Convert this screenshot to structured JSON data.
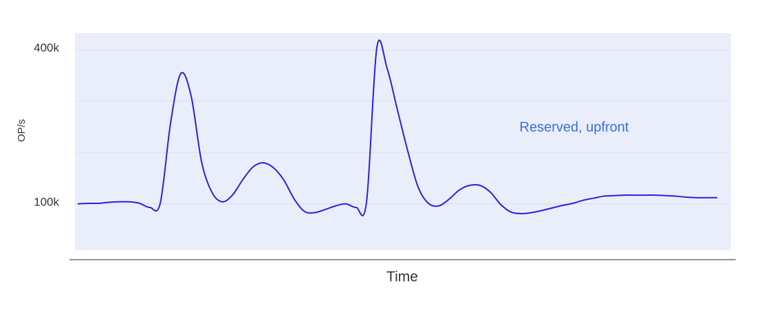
{
  "chart_data": {
    "type": "line",
    "ylabel": "OP/s",
    "xlabel": "Time",
    "annotation": "Reserved, upfront",
    "annotation_color": "#3a6fd8",
    "background": "#eaeefa",
    "grid": true,
    "categories": [
      null,
      null,
      null,
      null,
      null,
      null,
      null,
      null,
      null,
      null,
      null,
      null,
      null,
      null,
      null,
      null,
      null,
      null,
      null,
      null,
      null,
      null,
      null,
      null,
      null,
      null,
      null,
      null,
      null,
      null,
      null,
      null,
      null,
      null,
      null,
      null,
      null,
      null,
      null,
      null,
      null,
      null,
      null,
      null,
      null,
      null,
      null,
      null,
      null,
      null,
      null,
      null,
      null,
      null,
      null,
      null,
      null,
      null,
      null,
      null,
      null,
      null,
      null
    ],
    "series": [
      {
        "name": null,
        "color": "#2a1fdf",
        "values": [
          100000,
          101000,
          101000,
          103000,
          104000,
          104000,
          101000,
          93000,
          101000,
          257000,
          354000,
          310000,
          183000,
          123000,
          104000,
          117000,
          147000,
          172000,
          180000,
          170000,
          146000,
          109000,
          85000,
          83000,
          89000,
          96000,
          100000,
          93000,
          103000,
          404000,
          364000,
          283000,
          203000,
          133000,
          101000,
          96000,
          109000,
          127000,
          136000,
          136000,
          123000,
          99000,
          84000,
          81000,
          83000,
          87000,
          92000,
          97000,
          101000,
          107000,
          111000,
          115000,
          116000,
          117000,
          117000,
          117000,
          117000,
          116000,
          115000,
          113000,
          112000,
          112000,
          112000
        ]
      }
    ],
    "ylim": [
      10000,
      433000
    ],
    "yticks": [
      {
        "value": 100000,
        "label": "100k"
      },
      {
        "value": 200000,
        "label": null
      },
      {
        "value": 300000,
        "label": null
      },
      {
        "value": 400000,
        "label": "400k"
      }
    ]
  }
}
